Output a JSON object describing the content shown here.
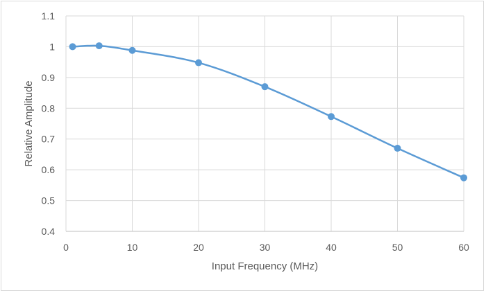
{
  "chart_data": {
    "type": "line",
    "title": "",
    "xlabel": "Input Frequency (MHz)",
    "ylabel": "Relative Amplitude",
    "xlim": [
      0,
      60
    ],
    "ylim": [
      0.4,
      1.1
    ],
    "x_ticks": [
      0,
      10,
      20,
      30,
      40,
      50,
      60
    ],
    "y_ticks": [
      0.4,
      0.5,
      0.6,
      0.7,
      0.8,
      0.9,
      1,
      1.1
    ],
    "grid": true,
    "legend": "none",
    "smooth": true,
    "series": [
      {
        "color": "#5b9bd5",
        "x": [
          1,
          5,
          10,
          20,
          30,
          40,
          50,
          60
        ],
        "y": [
          1.0,
          1.003,
          0.988,
          0.948,
          0.87,
          0.773,
          0.67,
          0.574
        ]
      }
    ]
  }
}
